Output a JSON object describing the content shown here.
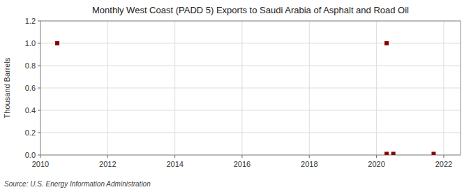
{
  "chart_data": {
    "type": "scatter",
    "title": "Monthly West Coast (PADD 5) Exports to Saudi Arabia of Asphalt and Road Oil",
    "ylabel": "Thousand Barrels",
    "source": "Source: U.S. Energy Information Administration",
    "x": [
      2010.5,
      2020.3,
      2020.3,
      2020.5,
      2021.7
    ],
    "values": [
      1.0,
      1.0,
      0.01,
      0.01,
      0.01
    ],
    "color": "#8b0000",
    "marker": "square",
    "xlim": [
      2010,
      2022.5
    ],
    "ylim": [
      0.0,
      1.2
    ],
    "xticks": [
      2010,
      2012,
      2014,
      2016,
      2018,
      2020,
      2022
    ],
    "yticks": [
      {
        "value": 0.0,
        "label": "0.0"
      },
      0.2,
      0.4,
      0.6,
      0.8,
      {
        "value": 1.0,
        "label": "1.0"
      },
      1.2
    ],
    "grid": true
  }
}
